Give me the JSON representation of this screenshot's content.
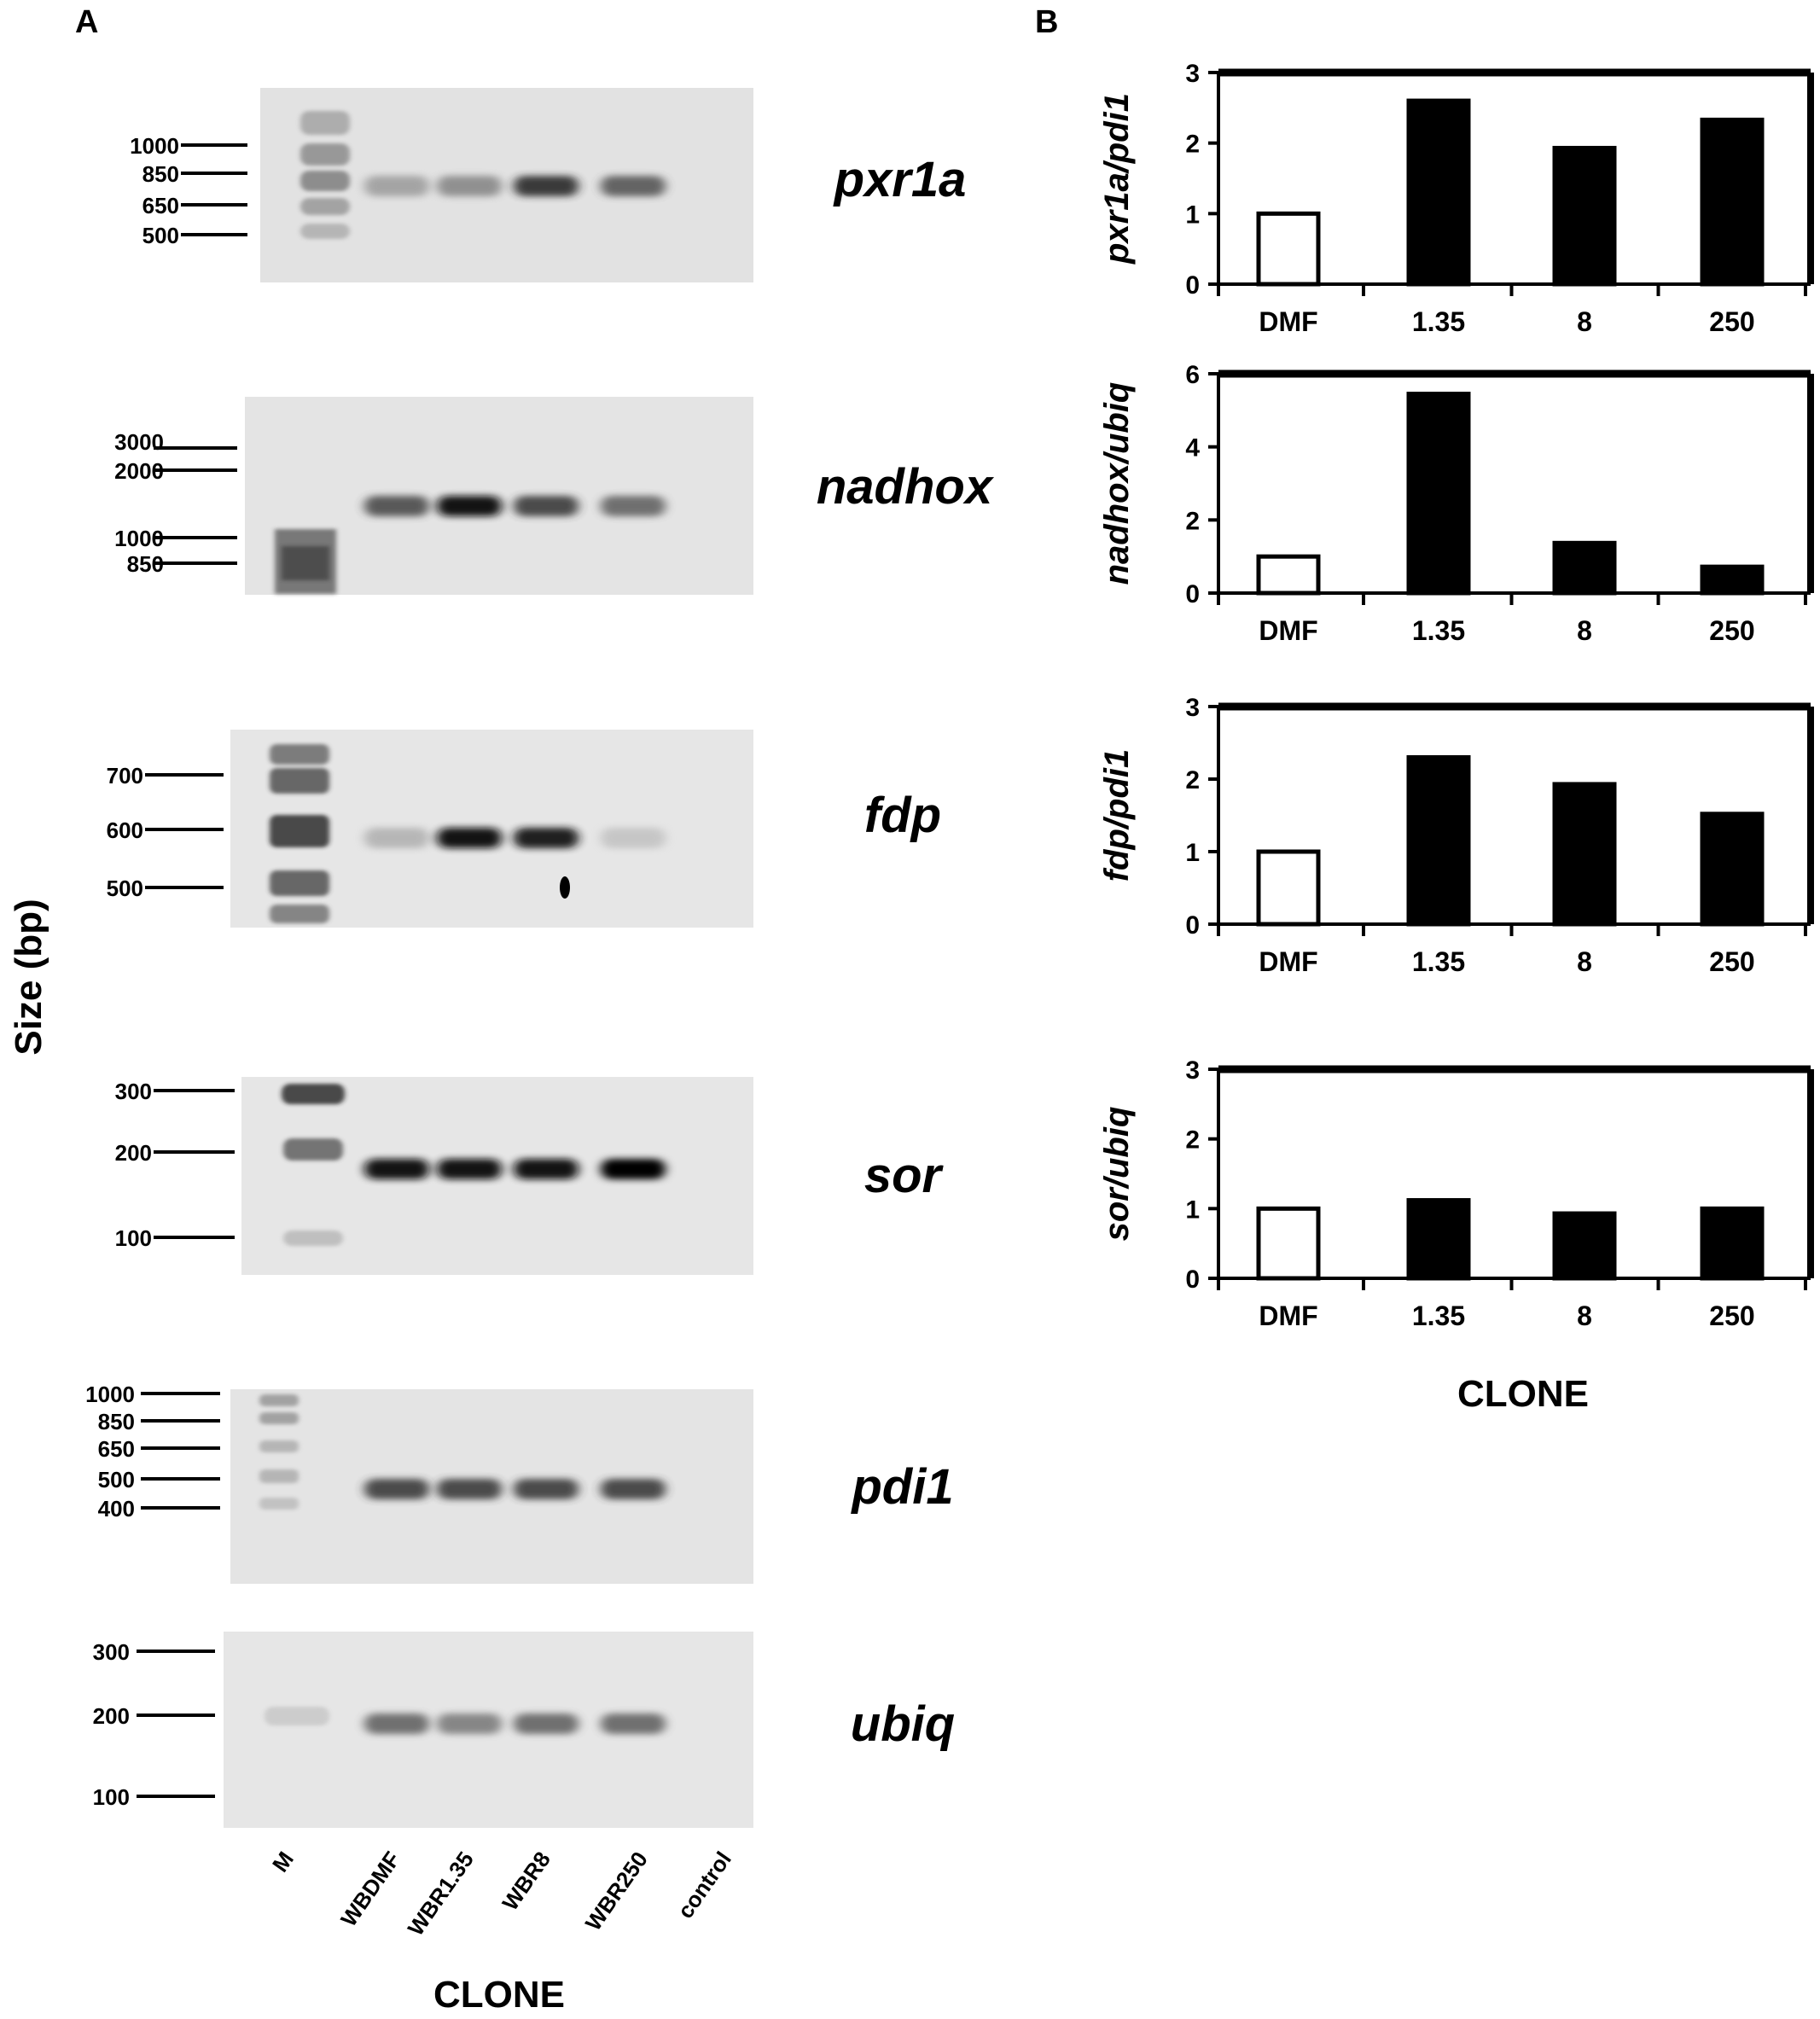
{
  "panel_a": {
    "letter": "A",
    "y_axis_label": "Size (bp)",
    "x_axis_label": "CLONE",
    "lanes": [
      "M",
      "WBDMF",
      "WBR1.35",
      "WBR8",
      "WBR250",
      "control"
    ],
    "gels": [
      {
        "gene": "pxr1a",
        "markers": [
          "1000",
          "850",
          "650",
          "500"
        ],
        "band_intensity": [
          0.35,
          0.45,
          0.8,
          0.65,
          0
        ]
      },
      {
        "gene": "nadhox",
        "markers": [
          "3000",
          "2000",
          "1000",
          "850"
        ],
        "band_intensity": [
          0.7,
          0.95,
          0.75,
          0.6,
          0
        ]
      },
      {
        "gene": "fdp",
        "markers": [
          "700",
          "600",
          "500"
        ],
        "band_intensity": [
          0.25,
          0.95,
          0.9,
          0.15,
          0
        ]
      },
      {
        "gene": "sor",
        "markers": [
          "300",
          "200",
          "100"
        ],
        "band_intensity": [
          0.95,
          0.95,
          0.95,
          1,
          0
        ]
      },
      {
        "gene": "pdi1",
        "markers": [
          "1000",
          "850",
          "650",
          "500",
          "400"
        ],
        "band_intensity": [
          0.75,
          0.75,
          0.75,
          0.75,
          0
        ]
      },
      {
        "gene": "ubiq",
        "markers": [
          "300",
          "200",
          "100"
        ],
        "band_intensity": [
          0.6,
          0.5,
          0.6,
          0.6,
          0
        ]
      }
    ]
  },
  "panel_b": {
    "letter": "B",
    "x_axis_label": "CLONE"
  },
  "colors": {
    "control_bar": "#ffffff",
    "treated_bar": "#000000",
    "gel_background": "#e3e3e3"
  },
  "chart_data": [
    {
      "type": "bar",
      "categories": [
        "DMF",
        "1.35",
        "8",
        "250"
      ],
      "values": [
        1.0,
        2.6,
        1.93,
        2.33
      ],
      "ylabel": "pxr1a/pdi1",
      "xlabel": "",
      "ylim": [
        0,
        3
      ],
      "yticks": [
        "0",
        "1",
        "2",
        "3"
      ],
      "grid": false
    },
    {
      "type": "bar",
      "categories": [
        "DMF",
        "1.35",
        "8",
        "250"
      ],
      "values": [
        1.0,
        5.45,
        1.37,
        0.72
      ],
      "ylabel": "nadhox/ubiq",
      "xlabel": "",
      "ylim": [
        0,
        6
      ],
      "yticks": [
        "0",
        "2",
        "4",
        "6"
      ],
      "grid": false
    },
    {
      "type": "bar",
      "categories": [
        "DMF",
        "1.35",
        "8",
        "250"
      ],
      "values": [
        1.0,
        2.3,
        1.93,
        1.52
      ],
      "ylabel": "fdp/pdi1",
      "xlabel": "",
      "ylim": [
        0,
        3
      ],
      "yticks": [
        "0",
        "1",
        "2",
        "3"
      ],
      "grid": false
    },
    {
      "type": "bar",
      "categories": [
        "DMF",
        "1.35",
        "8",
        "250"
      ],
      "values": [
        1.0,
        1.12,
        0.93,
        1.0
      ],
      "ylabel": "sor/ubiq",
      "xlabel": "CLONE",
      "ylim": [
        0,
        3
      ],
      "yticks": [
        "0",
        "1",
        "2",
        "3"
      ],
      "grid": false
    }
  ]
}
